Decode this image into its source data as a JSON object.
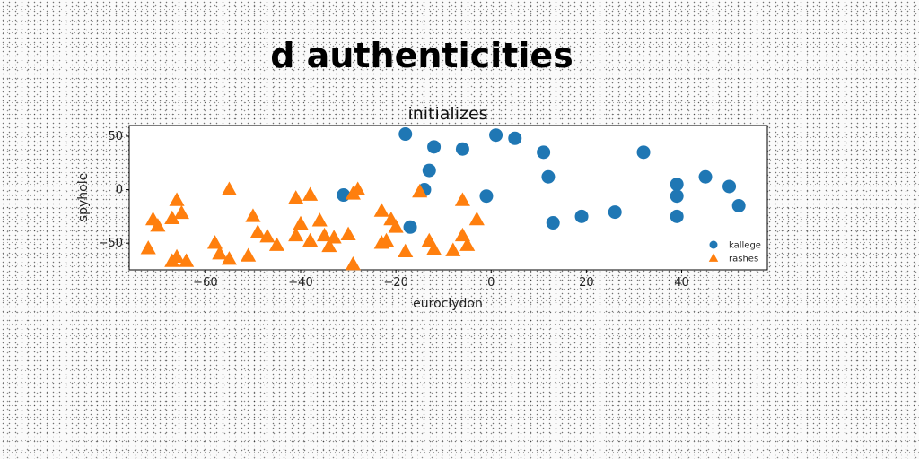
{
  "page": {
    "title": "d authenticities"
  },
  "chart_data": {
    "type": "scatter",
    "title": "initializes",
    "xlabel": "euroclydon",
    "ylabel": "spyhole",
    "xlim": [
      -76,
      58
    ],
    "ylim": [
      -75,
      60
    ],
    "xticks": [
      -60,
      -40,
      -20,
      0,
      20,
      40
    ],
    "yticks": [
      -50,
      0,
      50
    ],
    "grid": false,
    "legend_position": "bottom-right",
    "series": [
      {
        "name": "kallege",
        "marker": "circle",
        "color": "#1f77b4",
        "points": [
          [
            -18,
            52
          ],
          [
            -12,
            40
          ],
          [
            -6,
            38
          ],
          [
            1,
            51
          ],
          [
            5,
            48
          ],
          [
            11,
            35
          ],
          [
            32,
            35
          ],
          [
            -13,
            18
          ],
          [
            12,
            12
          ],
          [
            45,
            12
          ],
          [
            39,
            5
          ],
          [
            50,
            3
          ],
          [
            -14,
            0
          ],
          [
            -31,
            -5
          ],
          [
            -1,
            -6
          ],
          [
            39,
            -6
          ],
          [
            52,
            -15
          ],
          [
            26,
            -21
          ],
          [
            19,
            -25
          ],
          [
            39,
            -25
          ],
          [
            13,
            -31
          ],
          [
            -17,
            -35
          ]
        ]
      },
      {
        "name": "rashes",
        "marker": "triangle",
        "color": "#ff7f0e",
        "points": [
          [
            -55,
            0
          ],
          [
            -28,
            0
          ],
          [
            -29,
            -4
          ],
          [
            -38,
            -5
          ],
          [
            -41,
            -8
          ],
          [
            -66,
            -10
          ],
          [
            -6,
            -10
          ],
          [
            -15,
            -2
          ],
          [
            -71,
            -28
          ],
          [
            -23,
            -20
          ],
          [
            -65,
            -22
          ],
          [
            -50,
            -25
          ],
          [
            -67,
            -27
          ],
          [
            -3,
            -28
          ],
          [
            -21,
            -28
          ],
          [
            -36,
            -29
          ],
          [
            -40,
            -32
          ],
          [
            -70,
            -34
          ],
          [
            -20,
            -35
          ],
          [
            -49,
            -40
          ],
          [
            -41,
            -43
          ],
          [
            -47,
            -44
          ],
          [
            -30,
            -42
          ],
          [
            -33,
            -45
          ],
          [
            -35,
            -43
          ],
          [
            -22,
            -48
          ],
          [
            -38,
            -48
          ],
          [
            -6,
            -43
          ],
          [
            -13,
            -48
          ],
          [
            -58,
            -50
          ],
          [
            -45,
            -52
          ],
          [
            -23,
            -50
          ],
          [
            -34,
            -53
          ],
          [
            -5,
            -52
          ],
          [
            -72,
            -55
          ],
          [
            -12,
            -56
          ],
          [
            -8,
            -57
          ],
          [
            -18,
            -58
          ],
          [
            -57,
            -60
          ],
          [
            -51,
            -62
          ],
          [
            -66,
            -63
          ],
          [
            -55,
            -65
          ],
          [
            -67,
            -67
          ],
          [
            -64,
            -67
          ],
          [
            -29,
            -70
          ]
        ]
      }
    ]
  }
}
